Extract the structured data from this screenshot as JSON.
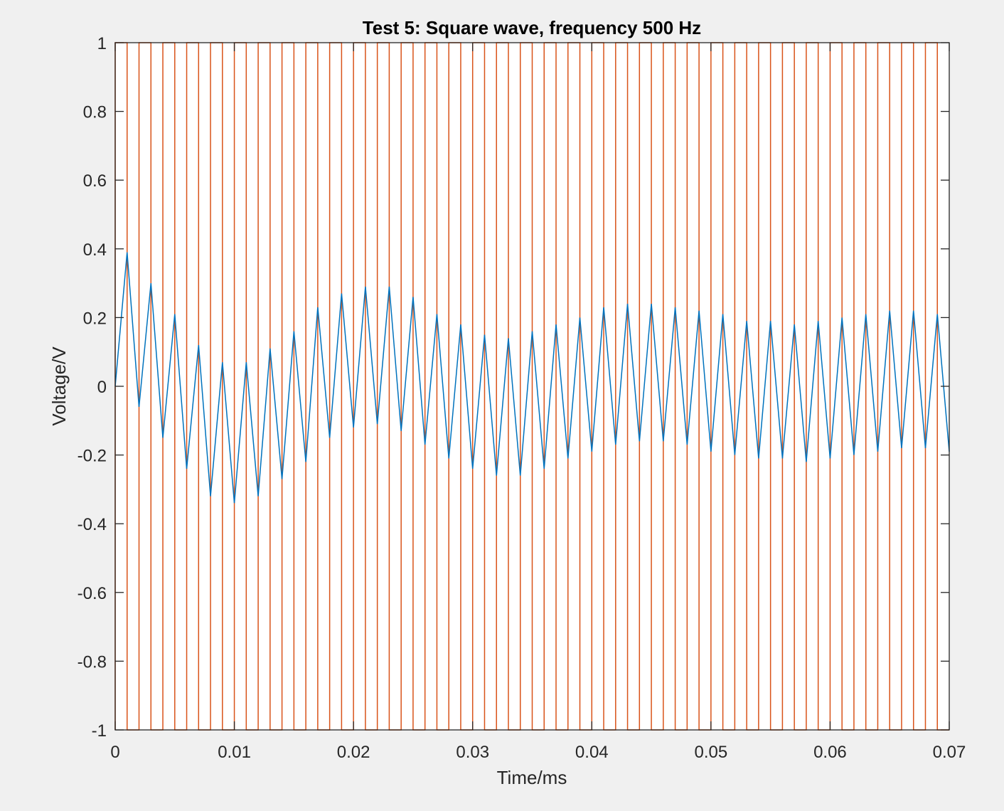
{
  "chart_data": {
    "type": "line",
    "title": "Test 5: Square wave, frequency 500 Hz",
    "xlabel": "Time/ms",
    "ylabel": "Voltage/V",
    "xlim": [
      0,
      0.07
    ],
    "ylim": [
      -1,
      1
    ],
    "grid": false,
    "legend": "none",
    "xticks": [
      0,
      0.01,
      0.02,
      0.03,
      0.04,
      0.05,
      0.06,
      0.07
    ],
    "xtick_labels": [
      "0",
      "0.01",
      "0.02",
      "0.03",
      "0.04",
      "0.05",
      "0.06",
      "0.07"
    ],
    "yticks": [
      -1,
      -0.8,
      -0.6,
      -0.4,
      -0.2,
      0,
      0.2,
      0.4,
      0.6,
      0.8,
      1
    ],
    "ytick_labels": [
      "-1",
      "-0.8",
      "-0.6",
      "-0.4",
      "-0.2",
      "0",
      "0.2",
      "0.4",
      "0.6",
      "0.8",
      "1"
    ],
    "series": [
      {
        "color": "#0072BD",
        "x": [
          0,
          0.001,
          0.002,
          0.003,
          0.004,
          0.005,
          0.006,
          0.007,
          0.008,
          0.009,
          0.01,
          0.011,
          0.012,
          0.013,
          0.014,
          0.015,
          0.016,
          0.017,
          0.018,
          0.019,
          0.02,
          0.021,
          0.022,
          0.023,
          0.024,
          0.025,
          0.026,
          0.027,
          0.028,
          0.029,
          0.03,
          0.031,
          0.032,
          0.033,
          0.034,
          0.035,
          0.036,
          0.037,
          0.038,
          0.039,
          0.04,
          0.041,
          0.042,
          0.043,
          0.044,
          0.045,
          0.046,
          0.047,
          0.048,
          0.049,
          0.05,
          0.051,
          0.052,
          0.053,
          0.054,
          0.055,
          0.056,
          0.057,
          0.058,
          0.059,
          0.06,
          0.061,
          0.062,
          0.063,
          0.064,
          0.065,
          0.066,
          0.067,
          0.068,
          0.069,
          0.07
        ],
        "y": [
          0,
          0.39,
          -0.06,
          0.3,
          -0.15,
          0.21,
          -0.24,
          0.12,
          -0.32,
          0.07,
          -0.34,
          0.07,
          -0.32,
          0.11,
          -0.27,
          0.16,
          -0.22,
          0.23,
          -0.15,
          0.27,
          -0.12,
          0.29,
          -0.11,
          0.29,
          -0.13,
          0.26,
          -0.17,
          0.21,
          -0.21,
          0.18,
          -0.24,
          0.15,
          -0.26,
          0.14,
          -0.26,
          0.16,
          -0.24,
          0.18,
          -0.21,
          0.2,
          -0.19,
          0.23,
          -0.17,
          0.24,
          -0.16,
          0.24,
          -0.16,
          0.23,
          -0.17,
          0.22,
          -0.19,
          0.21,
          -0.2,
          0.19,
          -0.21,
          0.19,
          -0.21,
          0.18,
          -0.22,
          0.19,
          -0.21,
          0.2,
          -0.2,
          0.21,
          -0.19,
          0.22,
          -0.18,
          0.22,
          -0.18,
          0.21,
          -0.19
        ]
      },
      {
        "color": "#D95319",
        "type": "square",
        "period": 0.002,
        "duty": 0.5,
        "high": 1,
        "low": -1,
        "start": 0,
        "end": 0.07
      }
    ]
  }
}
